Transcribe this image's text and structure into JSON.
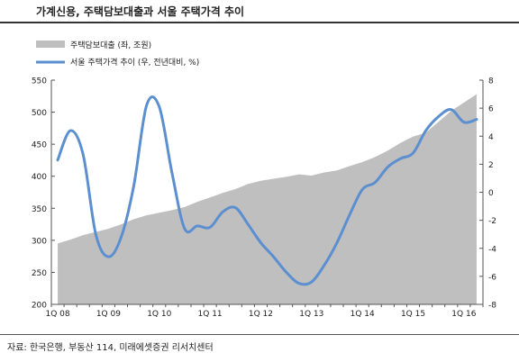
{
  "title": "가계신용, 주택담보대출과 서울 주택가격 추이",
  "source": "자료: 한국은행, 부동산 114, 미래에셋증권 리서치센터",
  "chart_data": {
    "type": "area",
    "x": [
      "1Q 08",
      "2Q 08",
      "3Q 08",
      "4Q 08",
      "1Q 09",
      "2Q 09",
      "3Q 09",
      "4Q 09",
      "1Q 10",
      "2Q 10",
      "3Q 10",
      "4Q 10",
      "1Q 11",
      "2Q 11",
      "3Q 11",
      "4Q 11",
      "1Q 12",
      "2Q 12",
      "3Q 12",
      "4Q 12",
      "1Q 13",
      "2Q 13",
      "3Q 13",
      "4Q 13",
      "1Q 14",
      "2Q 14",
      "3Q 14",
      "4Q 14",
      "1Q 15",
      "2Q 15",
      "3Q 15",
      "4Q 15",
      "1Q 16",
      "2Q 16"
    ],
    "x_tick_labels": [
      "1Q 08",
      "1Q 09",
      "1Q 10",
      "1Q 11",
      "1Q 12",
      "1Q 13",
      "1Q 14",
      "1Q 15",
      "1Q 16"
    ],
    "y_left_ticks": [
      200,
      250,
      300,
      350,
      400,
      450,
      500,
      550
    ],
    "y_right_ticks": [
      -8,
      -6,
      -4,
      -2,
      0,
      2,
      4,
      6,
      8
    ],
    "ylim_left": [
      200,
      550
    ],
    "ylim_right": [
      -8,
      8
    ],
    "series": [
      {
        "name": "주택담보대출 (좌, 조원)",
        "type": "area",
        "axis": "left",
        "color": "#bfbfbf",
        "values": [
          295,
          301,
          308,
          313,
          318,
          325,
          333,
          339,
          343,
          347,
          352,
          360,
          367,
          374,
          380,
          388,
          393,
          396,
          399,
          403,
          401,
          406,
          409,
          416,
          422,
          430,
          440,
          452,
          462,
          468,
          485,
          502,
          515,
          528
        ]
      },
      {
        "name": "서울 주택가격 추이 (우, 전년대비, %)",
        "type": "line",
        "axis": "right",
        "color": "#5b8fd0",
        "values": [
          2.3,
          4.4,
          2.7,
          -3.0,
          -4.6,
          -3.2,
          0.5,
          6.2,
          6.1,
          1.4,
          -2.6,
          -2.4,
          -2.5,
          -1.4,
          -1.1,
          -2.3,
          -3.6,
          -4.6,
          -5.7,
          -6.5,
          -6.4,
          -5.2,
          -3.6,
          -1.6,
          0.2,
          0.7,
          1.8,
          2.4,
          2.8,
          4.4,
          5.4,
          5.9,
          5.0,
          5.2
        ]
      }
    ],
    "legend_position": "top-left",
    "grid": false
  }
}
